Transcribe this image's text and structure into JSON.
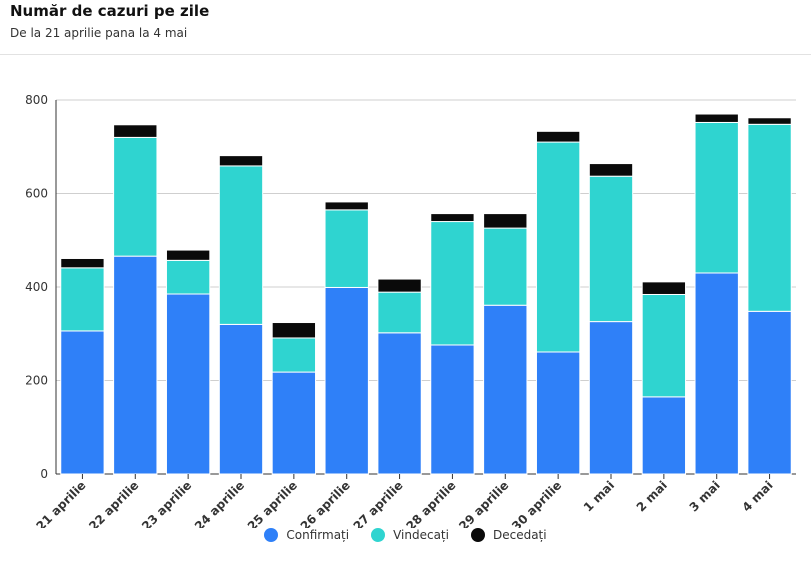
{
  "header": {
    "title": "Număr de cazuri pe zile",
    "subtitle": "De la 21 aprilie pana la 4 mai"
  },
  "colors": {
    "confirmati": "#2f80f8",
    "vindecati": "#2fd4d0",
    "decedati": "#0a0a0a",
    "grid": "#cfcfcf"
  },
  "chart_data": {
    "type": "bar",
    "stacked": true,
    "categories": [
      "21 aprilie",
      "22 aprilie",
      "23 aprilie",
      "24 aprilie",
      "25 aprilie",
      "26 aprilie",
      "27 aprilie",
      "28 aprilie",
      "29 aprilie",
      "30 aprilie",
      "1 mai",
      "2 mai",
      "3 mai",
      "4 mai"
    ],
    "series": [
      {
        "name": "Confirmați",
        "values": [
          306,
          466,
          385,
          320,
          218,
          399,
          302,
          276,
          361,
          261,
          326,
          165,
          430,
          348
        ]
      },
      {
        "name": "Vindecați",
        "values": [
          135,
          254,
          72,
          339,
          73,
          166,
          87,
          264,
          165,
          449,
          311,
          219,
          322,
          400
        ]
      },
      {
        "name": "Decedați",
        "values": [
          20,
          27,
          22,
          22,
          33,
          17,
          28,
          17,
          31,
          23,
          27,
          27,
          18,
          14
        ]
      }
    ],
    "ylim": [
      0,
      800
    ],
    "yticks": [
      0,
      200,
      400,
      600,
      800
    ],
    "grid": true,
    "legend_position": "bottom"
  }
}
